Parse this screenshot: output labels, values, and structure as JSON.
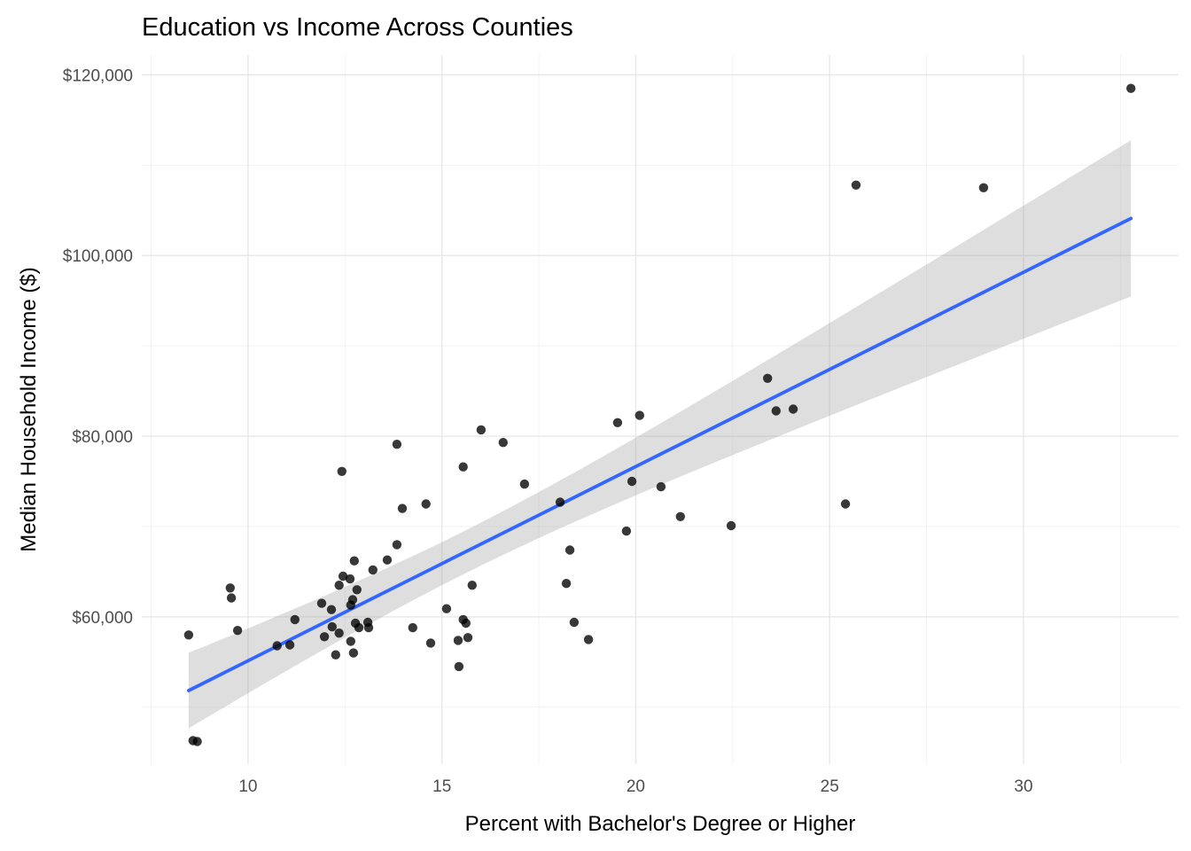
{
  "chart_data": {
    "type": "scatter",
    "title": "Education vs Income Across Counties",
    "xlabel": "Percent with Bachelor's Degree or Higher",
    "ylabel": "Median Household Income ($)",
    "xlim": [
      7.26,
      34.0
    ],
    "ylim": [
      43700,
      122200
    ],
    "grid": "major+minor",
    "legend_position": "none",
    "x_ticks": [
      {
        "value": 10,
        "label": "10"
      },
      {
        "value": 15,
        "label": "15"
      },
      {
        "value": 20,
        "label": "20"
      },
      {
        "value": 25,
        "label": "25"
      },
      {
        "value": 30,
        "label": "30"
      }
    ],
    "y_ticks": [
      {
        "value": 60000,
        "label": "$60,000"
      },
      {
        "value": 80000,
        "label": "$80,000"
      },
      {
        "value": 100000,
        "label": "$100,000"
      },
      {
        "value": 120000,
        "label": "$120,000"
      }
    ],
    "x_minor_ticks": [
      7.5,
      12.5,
      17.5,
      22.5,
      27.5,
      32.5
    ],
    "y_minor_ticks": [
      50000,
      70000,
      90000,
      110000
    ],
    "points": [
      [
        8.47,
        58000
      ],
      [
        8.58,
        46300
      ],
      [
        8.69,
        46200
      ],
      [
        9.54,
        63200
      ],
      [
        9.57,
        62100
      ],
      [
        9.73,
        58500
      ],
      [
        10.75,
        56800
      ],
      [
        11.08,
        56900
      ],
      [
        11.21,
        59700
      ],
      [
        11.9,
        61500
      ],
      [
        11.97,
        57800
      ],
      [
        12.15,
        60800
      ],
      [
        12.17,
        58900
      ],
      [
        12.26,
        55800
      ],
      [
        12.35,
        63500
      ],
      [
        12.35,
        58200
      ],
      [
        12.42,
        76100
      ],
      [
        12.45,
        64500
      ],
      [
        12.63,
        64200
      ],
      [
        12.65,
        61300
      ],
      [
        12.7,
        61900
      ],
      [
        12.65,
        57300
      ],
      [
        12.72,
        56000
      ],
      [
        12.74,
        66200
      ],
      [
        12.77,
        59300
      ],
      [
        12.81,
        63000
      ],
      [
        12.86,
        58800
      ],
      [
        13.09,
        59400
      ],
      [
        13.11,
        58800
      ],
      [
        13.22,
        65200
      ],
      [
        13.59,
        66300
      ],
      [
        13.84,
        68000
      ],
      [
        13.84,
        79100
      ],
      [
        13.98,
        72000
      ],
      [
        14.25,
        58800
      ],
      [
        14.59,
        72500
      ],
      [
        14.71,
        57100
      ],
      [
        15.12,
        60900
      ],
      [
        15.42,
        57400
      ],
      [
        15.44,
        54500
      ],
      [
        15.55,
        59700
      ],
      [
        15.55,
        76600
      ],
      [
        15.62,
        59300
      ],
      [
        15.67,
        57700
      ],
      [
        15.78,
        63500
      ],
      [
        16.01,
        80700
      ],
      [
        16.58,
        79300
      ],
      [
        17.13,
        74700
      ],
      [
        18.05,
        72700
      ],
      [
        18.21,
        63700
      ],
      [
        18.3,
        67400
      ],
      [
        18.41,
        59400
      ],
      [
        18.78,
        57500
      ],
      [
        19.53,
        81500
      ],
      [
        19.76,
        69500
      ],
      [
        19.9,
        75000
      ],
      [
        20.1,
        82300
      ],
      [
        20.65,
        74400
      ],
      [
        21.15,
        71100
      ],
      [
        22.46,
        70100
      ],
      [
        23.4,
        86400
      ],
      [
        23.62,
        82800
      ],
      [
        24.06,
        83000
      ],
      [
        25.41,
        72500
      ],
      [
        25.68,
        107800
      ],
      [
        28.97,
        107500
      ],
      [
        32.77,
        118500
      ]
    ],
    "smooth": {
      "method": "lm",
      "ci": "95%"
    },
    "point_style": {
      "color": "#000000",
      "opacity": 0.78,
      "radius": 5.2
    },
    "colors": {
      "regression_line": "#3366FF",
      "confidence_band": "rgba(160,160,160,0.35)",
      "grid_major": "#E9E9E9",
      "grid_minor": "#F2F2F2",
      "tick_label": "#4D4D4D",
      "title": "#000000",
      "background": "#FFFFFF"
    }
  }
}
